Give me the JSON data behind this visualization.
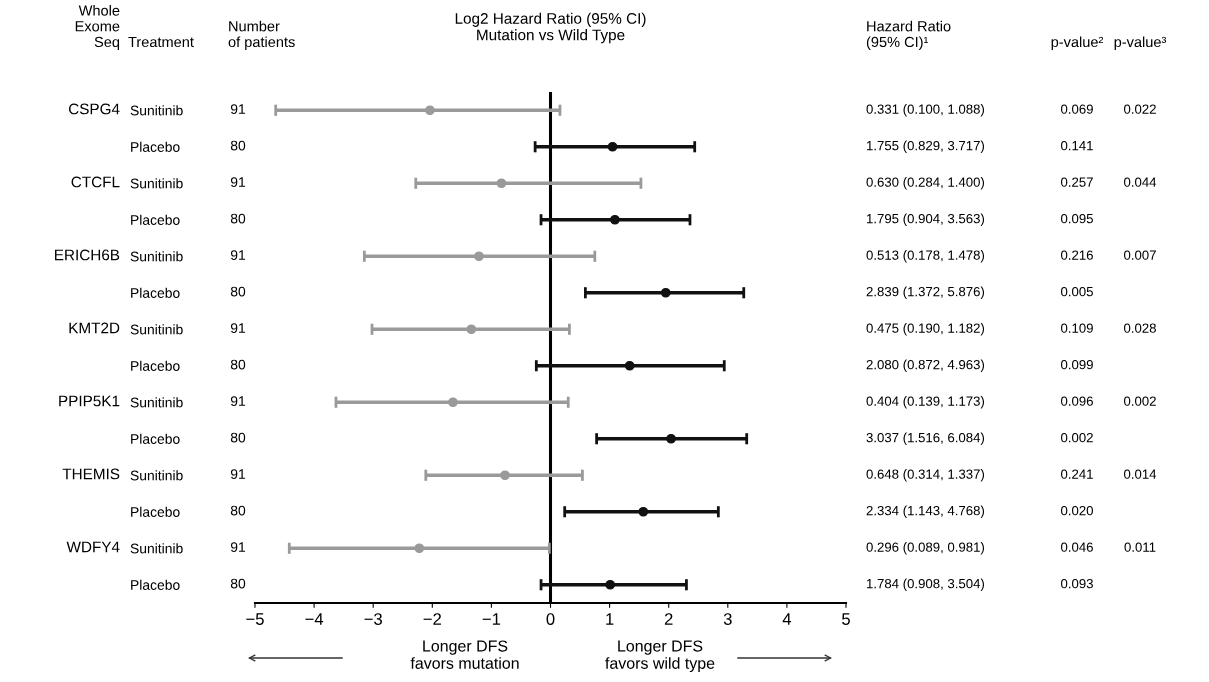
{
  "chart_data": {
    "type": "scatter",
    "orientation": "horizontal",
    "title": "Log2 Hazard Ratio (95% CI)\nMutation vs Wild Type",
    "categories": [
      "Sunitinib",
      "Placebo",
      "Sunitinib",
      "Placebo",
      "Sunitinib",
      "Placebo",
      "Sunitinib",
      "Placebo",
      "Sunitinib",
      "Placebo",
      "Sunitinib",
      "Placebo",
      "Sunitinib",
      "Placebo"
    ],
    "series": [
      {
        "color": "#9a9a9a",
        "values": [
          -2.04,
          null,
          -0.83,
          null,
          -1.21,
          null,
          -1.34,
          null,
          -1.65,
          null,
          -0.77,
          null,
          -2.22,
          null
        ],
        "errors": [
          [
            -4.65,
            0.16
          ],
          null,
          [
            -2.28,
            1.53
          ],
          null,
          [
            -3.15,
            0.75
          ],
          null,
          [
            -3.02,
            0.32
          ],
          null,
          [
            -3.63,
            0.3
          ],
          null,
          [
            -2.11,
            0.54
          ],
          null,
          [
            -4.42,
            -0.02
          ],
          null
        ]
      },
      {
        "color": "#111111",
        "values": [
          null,
          1.05,
          null,
          1.09,
          null,
          1.95,
          null,
          1.34,
          null,
          2.04,
          null,
          1.57,
          null,
          1.01
        ],
        "errors": [
          null,
          [
            -0.26,
            2.44
          ],
          null,
          [
            -0.16,
            2.36
          ],
          null,
          [
            0.59,
            3.27
          ],
          null,
          [
            -0.24,
            2.94
          ],
          null,
          [
            0.78,
            3.32
          ],
          null,
          [
            0.24,
            2.84
          ],
          null,
          [
            -0.16,
            2.3
          ]
        ]
      }
    ],
    "xlim": [
      -5,
      5
    ],
    "xticks": [
      {
        "value": -5,
        "label": "−5"
      },
      {
        "value": -4,
        "label": "−4"
      },
      {
        "value": -3,
        "label": "−3"
      },
      {
        "value": -2,
        "label": "−2"
      },
      {
        "value": -1,
        "label": "−1"
      },
      0,
      1,
      2,
      3,
      4,
      5
    ],
    "ref_lines": [
      {
        "axis": "x",
        "value": 0,
        "color": "#000000"
      }
    ],
    "marker": "circle",
    "grid": false,
    "legend": false,
    "annotations": [
      "Whole\nExome\nSeq",
      "Treatment",
      "Number\nof patients",
      "Hazard Ratio\n(95% CI)¹",
      "p-value²",
      "p-value³",
      "CSPG4",
      "CTCFL",
      "ERICH6B",
      "KMT2D",
      "PPIP5K1",
      "THEMIS",
      "WDFY4",
      "91",
      "80",
      "91",
      "80",
      "91",
      "80",
      "91",
      "80",
      "91",
      "80",
      "91",
      "80",
      "91",
      "80",
      "0.331 (0.100, 1.088)",
      "1.755 (0.829, 3.717)",
      "0.630 (0.284, 1.400)",
      "1.795 (0.904, 3.563)",
      "0.513 (0.178, 1.478)",
      "2.839 (1.372, 5.876)",
      "0.475 (0.190, 1.182)",
      "2.080 (0.872, 4.963)",
      "0.404 (0.139, 1.173)",
      "3.037 (1.516, 6.084)",
      "0.648 (0.314, 1.337)",
      "2.334 (1.143, 4.768)",
      "0.296 (0.089, 0.981)",
      "1.784 (0.908, 3.504)",
      "0.069",
      "0.141",
      "0.257",
      "0.095",
      "0.216",
      "0.005",
      "0.109",
      "0.099",
      "0.096",
      "0.002",
      "0.241",
      "0.020",
      "0.046",
      "0.093",
      "0.022",
      "0.044",
      "0.007",
      "0.028",
      "0.002",
      "0.014",
      "0.011",
      "Longer DFS\nfavors mutation",
      "Longer DFS\nfavors wild type"
    ]
  }
}
